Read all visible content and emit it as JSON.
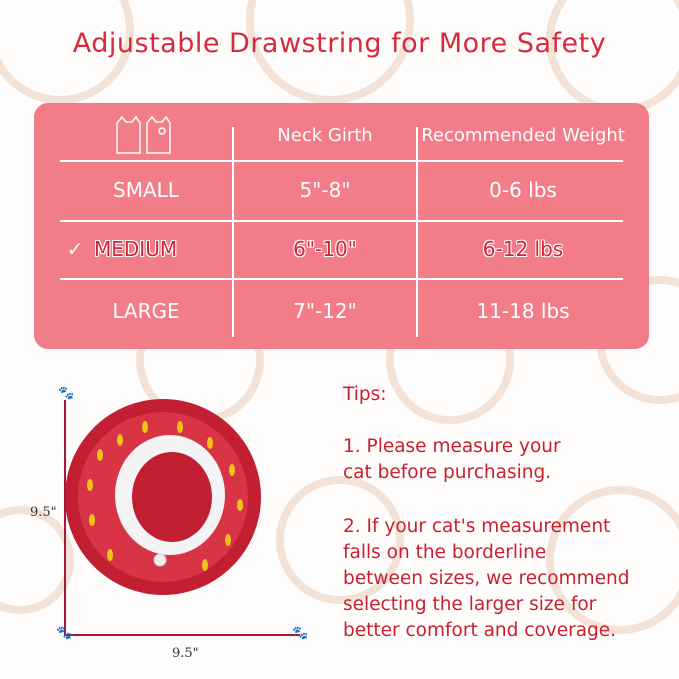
{
  "title": "Adjustable Drawstring for More Safety",
  "colors": {
    "accent": "#d92a3d",
    "table_bg": "#f27d88",
    "cone_red": "#c21f32",
    "seed_yellow": "#f2c21b"
  },
  "table": {
    "header_icon": "cat-faces-icon",
    "headers": [
      "Neck Girth",
      "Recommended Weight"
    ],
    "rows": [
      {
        "size": "SMALL",
        "girth": "5\"-8\"",
        "weight": "0-6 lbs"
      },
      {
        "size": "MEDIUM",
        "girth": "6\"-10\"",
        "weight": "6-12 lbs",
        "selected": true,
        "mark": "✓"
      },
      {
        "size": "LARGE",
        "girth": "7\"-12\"",
        "weight": "11-18 lbs"
      }
    ]
  },
  "product": {
    "height_label": "9.5\"",
    "width_label": "9.5\""
  },
  "tips": {
    "heading": "Tips:",
    "lines1": [
      "1. Please measure your",
      "cat before purchasing."
    ],
    "lines2": [
      "2. If your cat's measurement",
      "falls on the borderline",
      "between sizes, we recommend",
      "selecting the larger size for",
      "better comfort and coverage."
    ]
  }
}
